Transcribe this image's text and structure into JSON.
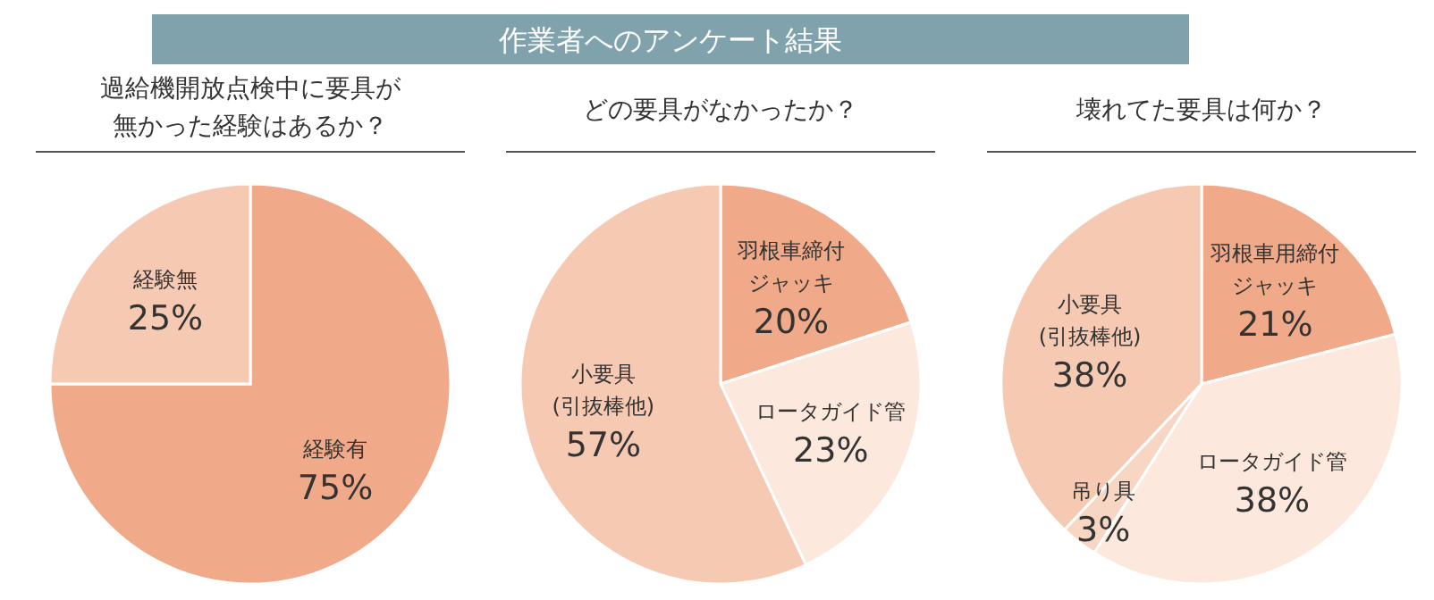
{
  "chart_data": [
    {
      "type": "other",
      "title": "作業者へのアンケート結果"
    },
    {
      "type": "pie",
      "title": "過給機開放点検中に要具が無かった経験はあるか？",
      "categories": [
        "経験有",
        "経験無"
      ],
      "values": [
        75,
        25
      ],
      "colors": [
        "#f0aa89",
        "#f6c9b3"
      ],
      "value_labels": [
        "75%",
        "25%"
      ]
    },
    {
      "type": "pie",
      "title": "どの要具がなかったか？",
      "categories": [
        "羽根車締付ジャッキ",
        "ロータガイド管",
        "小要具(引抜棒他)"
      ],
      "values": [
        20,
        23,
        57
      ],
      "colors": [
        "#f0aa89",
        "#fce8dc",
        "#f6c9b3"
      ],
      "value_labels": [
        "20%",
        "23%",
        "57%"
      ]
    },
    {
      "type": "pie",
      "title": "壊れてた要具は何か？",
      "categories": [
        "羽根車用締付ジャッキ",
        "ロータガイド管",
        "吊り具",
        "小要具(引抜棒他)"
      ],
      "values": [
        21,
        38,
        3,
        38
      ],
      "colors": [
        "#f0aa89",
        "#fce8dc",
        "#f8d6c4",
        "#f6c9b3"
      ],
      "value_labels": [
        "21%",
        "38%",
        "3%",
        "38%"
      ]
    }
  ]
}
